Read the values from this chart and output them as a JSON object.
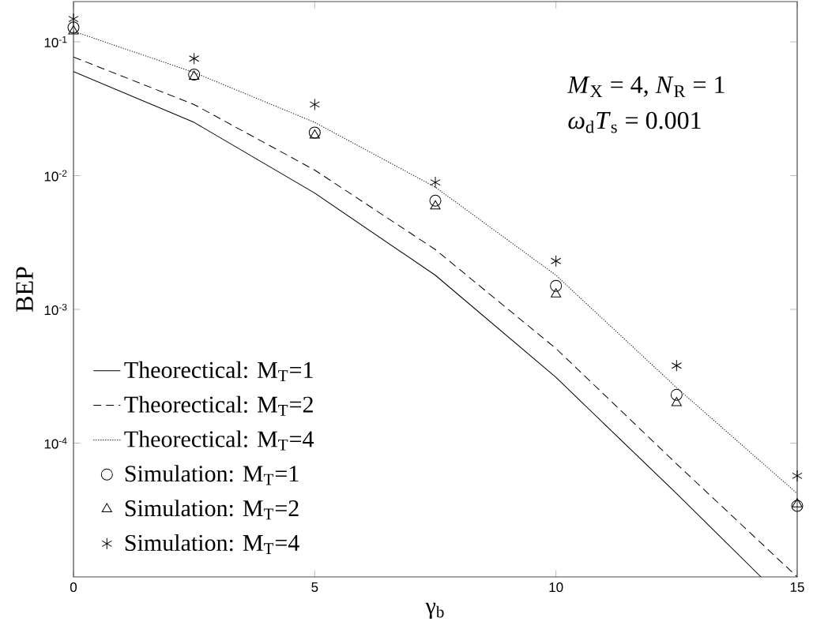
{
  "chart_data": {
    "type": "line",
    "xlabel": "γ$_{b}$",
    "ylabel": "BEP",
    "log": "y",
    "xlim": [
      0,
      15
    ],
    "ylim": [
      1e-05,
      0.2
    ],
    "xticks": [
      0,
      5,
      10,
      15
    ],
    "yticks": [
      {
        "value": 0.1,
        "label": "10$^{-1}$"
      },
      {
        "value": 0.01,
        "label": "10$^{-2}$"
      },
      {
        "value": 0.001,
        "label": "10$^{-3}$"
      },
      {
        "value": 0.0001,
        "label": "10$^{-4}$"
      }
    ],
    "grid": false,
    "legend": "bottom left",
    "annotations": [
      "*M*$_{X}$ = 4, *N*$_{R}$ = 1",
      "*ω*$_{d}$*T*$_{s}$ = 0.001"
    ],
    "series": [
      {
        "name": "Theorectical: M$_{T}$=1",
        "color": "#000000",
        "line_style": "solid",
        "marker": "none",
        "x": [
          0,
          2.5,
          5,
          7.5,
          10,
          12.5,
          14.25
        ],
        "values": [
          0.06,
          0.025,
          0.0074,
          0.0018,
          0.00031,
          4.2e-05,
          1e-05
        ]
      },
      {
        "name": "Theorectical: M$_{T}$=2",
        "color": "#000000",
        "line_style": "dashed",
        "marker": "none",
        "x": [
          0,
          2.5,
          5,
          7.5,
          10,
          12.5,
          15
        ],
        "values": [
          0.077,
          0.034,
          0.011,
          0.0028,
          0.00051,
          7e-05,
          1e-05
        ]
      },
      {
        "name": "Theorectical: M$_{T}$=4",
        "color": "#000000",
        "line_style": "dotted",
        "marker": "none",
        "x": [
          0,
          2.5,
          5,
          7.5,
          10,
          12.5,
          15
        ],
        "values": [
          0.12,
          0.059,
          0.025,
          0.0082,
          0.0018,
          0.00026,
          4.2e-05
        ]
      },
      {
        "name": "Simulation: M$_{T}$=1",
        "type": "scatter",
        "color": "#000000",
        "marker": "circle",
        "x": [
          0,
          2.5,
          5,
          7.5,
          10,
          12.5,
          15
        ],
        "values": [
          0.128,
          0.057,
          0.021,
          0.0065,
          0.0015,
          0.00023,
          3.4e-05
        ]
      },
      {
        "name": "Simulation: M$_{T}$=2",
        "type": "scatter",
        "color": "#000000",
        "marker": "triangle",
        "x": [
          0,
          2.5,
          5,
          7.5,
          10,
          12.5,
          15
        ],
        "values": [
          0.12,
          0.055,
          0.02,
          0.0059,
          0.0013,
          0.0002,
          3.5e-05
        ]
      },
      {
        "name": "Simulation: M$_{T}$=4",
        "type": "scatter",
        "color": "#000000",
        "marker": "cross",
        "x": [
          0,
          2.5,
          5,
          7.5,
          10,
          12.5,
          15
        ],
        "values": [
          0.148,
          0.075,
          0.034,
          0.0089,
          0.0023,
          0.00038,
          5.7e-05
        ]
      }
    ]
  }
}
